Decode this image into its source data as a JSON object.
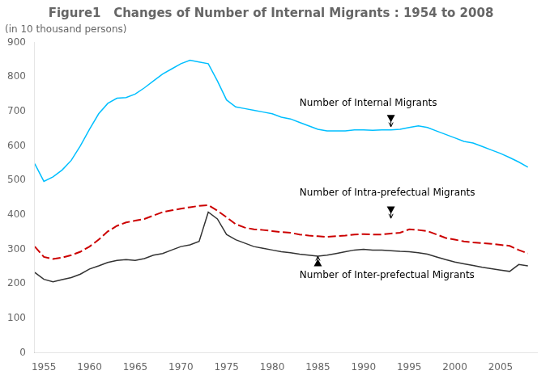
{
  "chart_data": {
    "type": "line",
    "title": "Figure1   Changes of Number of Internal Migrants : 1954 to 2008",
    "subtitle": "(in 10 thousand persons)",
    "xlim": [
      1954,
      2009
    ],
    "xticks": [
      1955,
      1960,
      1965,
      1970,
      1975,
      1980,
      1985,
      1990,
      1995,
      2000,
      2005
    ],
    "ylim": [
      0,
      900
    ],
    "yticks": [
      0,
      100,
      200,
      300,
      400,
      500,
      600,
      700,
      800,
      900
    ],
    "grid": false,
    "x": [
      1954,
      1955,
      1956,
      1957,
      1958,
      1959,
      1960,
      1961,
      1962,
      1963,
      1964,
      1965,
      1966,
      1967,
      1968,
      1969,
      1970,
      1971,
      1972,
      1973,
      1974,
      1975,
      1976,
      1977,
      1978,
      1979,
      1980,
      1981,
      1982,
      1983,
      1984,
      1985,
      1986,
      1987,
      1988,
      1989,
      1990,
      1991,
      1992,
      1993,
      1994,
      1995,
      1996,
      1997,
      1998,
      1999,
      2000,
      2001,
      2002,
      2003,
      2004,
      2005,
      2006,
      2007,
      2008
    ],
    "series": [
      {
        "color": "#00BFFF",
        "line_style": "solid",
        "values": [
          548,
          497,
          510,
          530,
          558,
          600,
          648,
          693,
          723,
          738,
          740,
          750,
          768,
          788,
          808,
          823,
          838,
          848,
          843,
          838,
          788,
          733,
          713,
          708,
          703,
          698,
          693,
          683,
          678,
          668,
          658,
          648,
          643,
          643,
          643,
          646,
          646,
          645,
          646,
          646,
          648,
          653,
          658,
          653,
          643,
          633,
          623,
          613,
          608,
          598,
          588,
          578,
          566,
          553,
          538
        ]
      },
      {
        "color": "#CC0000",
        "line_style": "dashed",
        "values": [
          308,
          278,
          272,
          276,
          283,
          293,
          308,
          328,
          352,
          368,
          378,
          383,
          388,
          398,
          408,
          413,
          418,
          422,
          426,
          428,
          412,
          393,
          373,
          363,
          358,
          356,
          353,
          350,
          348,
          343,
          340,
          338,
          336,
          338,
          340,
          343,
          344,
          343,
          343,
          346,
          348,
          358,
          356,
          353,
          343,
          333,
          328,
          323,
          320,
          318,
          316,
          313,
          310,
          298,
          288
        ]
      },
      {
        "color": "#333333",
        "line_style": "solid",
        "values": [
          233,
          213,
          206,
          212,
          218,
          228,
          243,
          252,
          262,
          268,
          270,
          268,
          273,
          283,
          288,
          298,
          308,
          313,
          323,
          408,
          388,
          343,
          328,
          318,
          308,
          303,
          298,
          293,
          290,
          286,
          283,
          280,
          283,
          288,
          293,
          298,
          300,
          298,
          298,
          296,
          294,
          293,
          290,
          286,
          278,
          270,
          263,
          258,
          253,
          248,
          244,
          240,
          236,
          256,
          252
        ]
      }
    ],
    "annotations": [
      {
        "text": "Number of Internal Migrants",
        "x": 1983,
        "y": 710,
        "arrow_from": [
          1993,
          680
        ],
        "arrow_to": [
          1993,
          655
        ],
        "marker": "triangle-down"
      },
      {
        "text": "Number of Intra-prefectual Migrants",
        "x": 1983,
        "y": 448,
        "arrow_from": [
          1993,
          415
        ],
        "arrow_to": [
          1993,
          390
        ],
        "marker": "triangle-down"
      },
      {
        "text": "Number of Inter-prefectual Migrants",
        "x": 1983,
        "y": 238,
        "arrow_from": [
          1985,
          260
        ],
        "arrow_to": [
          1985,
          280
        ],
        "marker": "triangle-up"
      }
    ]
  }
}
